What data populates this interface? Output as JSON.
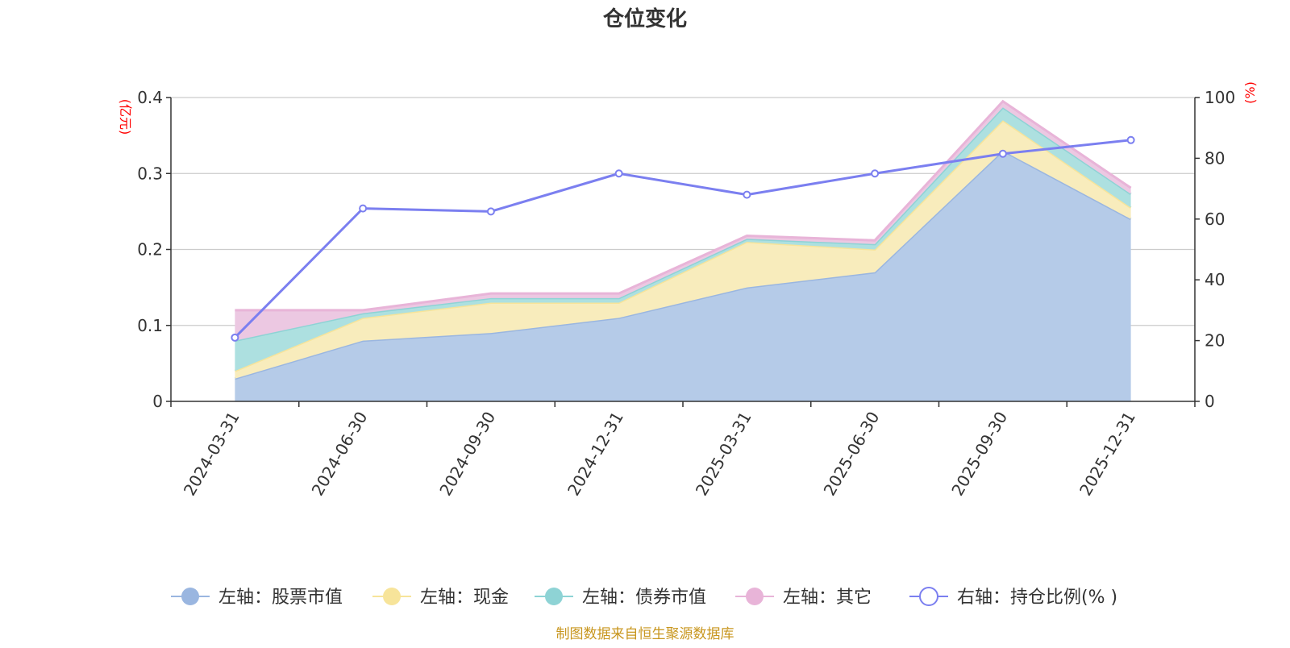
{
  "chart_data": {
    "type": "area",
    "title": "仓位变化",
    "categories": [
      "2024-03-31",
      "2024-06-30",
      "2024-09-30",
      "2024-12-31",
      "2025-03-31",
      "2025-06-30",
      "2025-09-30",
      "2025-12-31"
    ],
    "left_axis": {
      "unit": "(亿元)",
      "ylim": [
        0,
        0.4
      ],
      "ticks": [
        "0",
        "0.1",
        "0.2",
        "0.3",
        "0.4"
      ],
      "tick_values": [
        0,
        0.1,
        0.2,
        0.3,
        0.4
      ]
    },
    "right_axis": {
      "unit": "(%)",
      "ylim": [
        0,
        100
      ],
      "ticks": [
        "0",
        "20",
        "40",
        "60",
        "80",
        "100"
      ],
      "tick_values": [
        0,
        20,
        40,
        60,
        80,
        100
      ]
    },
    "stacked_series": [
      {
        "name": "左轴：股票市值",
        "color": "#9ab6e0",
        "fill": "#b5cbe8",
        "values": [
          0.03,
          0.08,
          0.09,
          0.11,
          0.15,
          0.17,
          0.33,
          0.24
        ]
      },
      {
        "name": "左轴：现金",
        "color": "#f7e49a",
        "fill": "#f8ecbc",
        "values": [
          0.01,
          0.03,
          0.04,
          0.02,
          0.06,
          0.03,
          0.04,
          0.015
        ]
      },
      {
        "name": "左轴：债券市值",
        "color": "#8ed3d5",
        "fill": "#ade0e0",
        "values": [
          0.04,
          0.006,
          0.006,
          0.006,
          0.004,
          0.007,
          0.017,
          0.018
        ]
      },
      {
        "name": "左轴：其它",
        "color": "#e8b4d8",
        "fill": "#ecc8e2",
        "values": [
          0.04,
          0.004,
          0.006,
          0.006,
          0.004,
          0.005,
          0.008,
          0.008
        ]
      }
    ],
    "line_series": {
      "name": "右轴：持仓比例(% )",
      "color": "#7b7ff0",
      "values": [
        21,
        63.5,
        62.5,
        75,
        68,
        75,
        81.5,
        86
      ]
    },
    "grid": true,
    "legend_position": "bottom"
  },
  "source_note": "制图数据来自恒生聚源数据库"
}
